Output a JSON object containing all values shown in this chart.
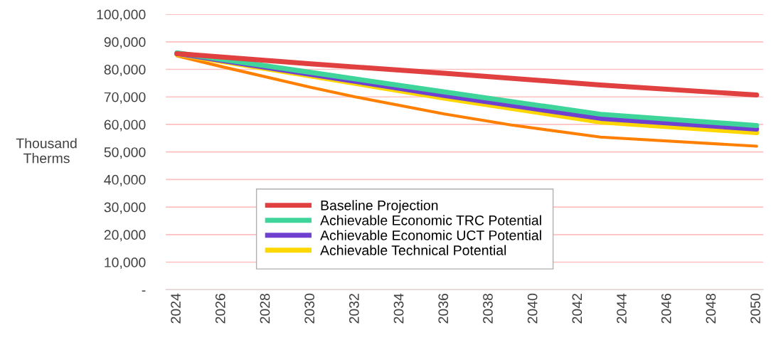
{
  "chart_data": {
    "type": "line",
    "ylabel": "Thousand\nTherms",
    "xlim": [
      2023.5,
      2050.3
    ],
    "xticks": [
      2024,
      2026,
      2028,
      2030,
      2032,
      2034,
      2036,
      2038,
      2040,
      2042,
      2044,
      2046,
      2048,
      2050
    ],
    "ylim": [
      0,
      100000
    ],
    "yticks": [
      {
        "value": 0,
        "label": "-"
      },
      {
        "value": 10000,
        "label": "10,000"
      },
      {
        "value": 20000,
        "label": "20,000"
      },
      {
        "value": 30000,
        "label": "30,000"
      },
      {
        "value": 40000,
        "label": "40,000"
      },
      {
        "value": 50000,
        "label": "50,000"
      },
      {
        "value": 60000,
        "label": "60,000"
      },
      {
        "value": 70000,
        "label": "70,000"
      },
      {
        "value": 80000,
        "label": "80,000"
      },
      {
        "value": 90000,
        "label": "90,000"
      },
      {
        "value": 100000,
        "label": "100,000"
      }
    ],
    "grid": "y",
    "legend": "bottom",
    "marker": "none",
    "line_style": "solid",
    "series": [
      {
        "name": "Baseline Projection",
        "color": "#e04040",
        "x": [
          2024,
          2030,
          2036,
          2043,
          2050
        ],
        "values": [
          85700,
          82000,
          78600,
          74300,
          70700
        ]
      },
      {
        "name": "Achievable Economic TRC Potential",
        "color": "#3ed49a",
        "x": [
          2024,
          2030,
          2036,
          2043,
          2050
        ],
        "values": [
          86000,
          78900,
          71800,
          63700,
          59600
        ]
      },
      {
        "name": "Achievable Economic UCT Potential",
        "color": "#7040d0",
        "x": [
          2024,
          2030,
          2036,
          2043,
          2050
        ],
        "values": [
          85800,
          78200,
          70500,
          62200,
          58300
        ]
      },
      {
        "name": "Achievable Technical Potential",
        "color": "#ffd700",
        "x": [
          2024,
          2030,
          2036,
          2043,
          2050
        ],
        "values": [
          85500,
          77600,
          69500,
          60900,
          57000
        ]
      },
      {
        "color": "#ff8000",
        "x": [
          2024,
          2026,
          2030,
          2032,
          2036,
          2039,
          2043,
          2050
        ],
        "values": [
          84900,
          81000,
          73500,
          70000,
          63800,
          59800,
          55400,
          52100
        ]
      }
    ]
  }
}
